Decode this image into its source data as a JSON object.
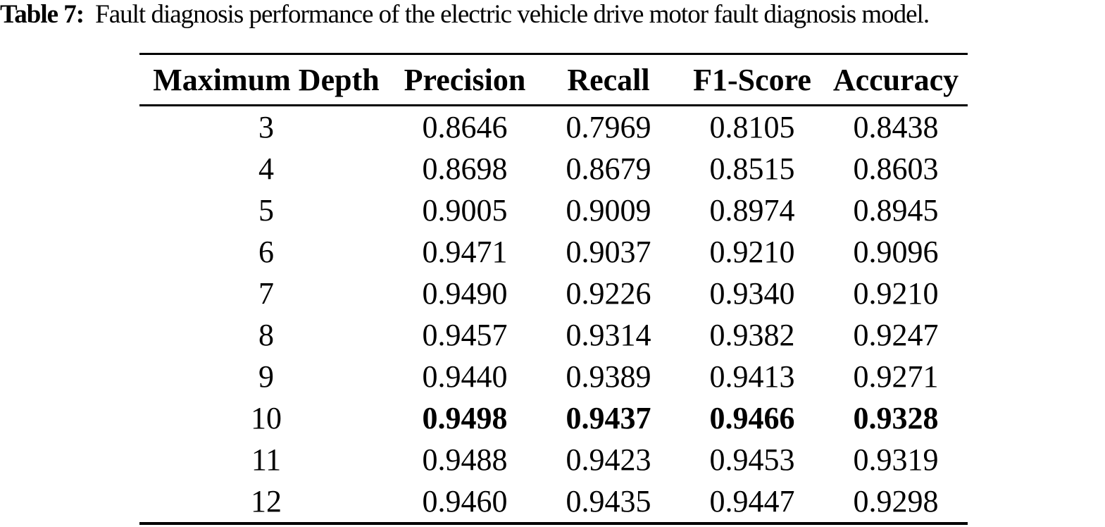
{
  "caption": {
    "label": "Table 7:",
    "text": "Fault diagnosis performance of the electric vehicle drive motor fault diagnosis model."
  },
  "table": {
    "columns": [
      "Maximum Depth",
      "Precision",
      "Recall",
      "F1-Score",
      "Accuracy"
    ],
    "rows": [
      {
        "depth": "3",
        "precision": "0.8646",
        "recall": "0.7969",
        "f1_score": "0.8105",
        "accuracy": "0.8438",
        "bold": false
      },
      {
        "depth": "4",
        "precision": "0.8698",
        "recall": "0.8679",
        "f1_score": "0.8515",
        "accuracy": "0.8603",
        "bold": false
      },
      {
        "depth": "5",
        "precision": "0.9005",
        "recall": "0.9009",
        "f1_score": "0.8974",
        "accuracy": "0.8945",
        "bold": false
      },
      {
        "depth": "6",
        "precision": "0.9471",
        "recall": "0.9037",
        "f1_score": "0.9210",
        "accuracy": "0.9096",
        "bold": false
      },
      {
        "depth": "7",
        "precision": "0.9490",
        "recall": "0.9226",
        "f1_score": "0.9340",
        "accuracy": "0.9210",
        "bold": false
      },
      {
        "depth": "8",
        "precision": "0.9457",
        "recall": "0.9314",
        "f1_score": "0.9382",
        "accuracy": "0.9247",
        "bold": false
      },
      {
        "depth": "9",
        "precision": "0.9440",
        "recall": "0.9389",
        "f1_score": "0.9413",
        "accuracy": "0.9271",
        "bold": false
      },
      {
        "depth": "10",
        "precision": "0.9498",
        "recall": "0.9437",
        "f1_score": "0.9466",
        "accuracy": "0.9328",
        "bold": true
      },
      {
        "depth": "11",
        "precision": "0.9488",
        "recall": "0.9423",
        "f1_score": "0.9453",
        "accuracy": "0.9319",
        "bold": false
      },
      {
        "depth": "12",
        "precision": "0.9460",
        "recall": "0.9435",
        "f1_score": "0.9447",
        "accuracy": "0.9298",
        "bold": false
      }
    ]
  }
}
